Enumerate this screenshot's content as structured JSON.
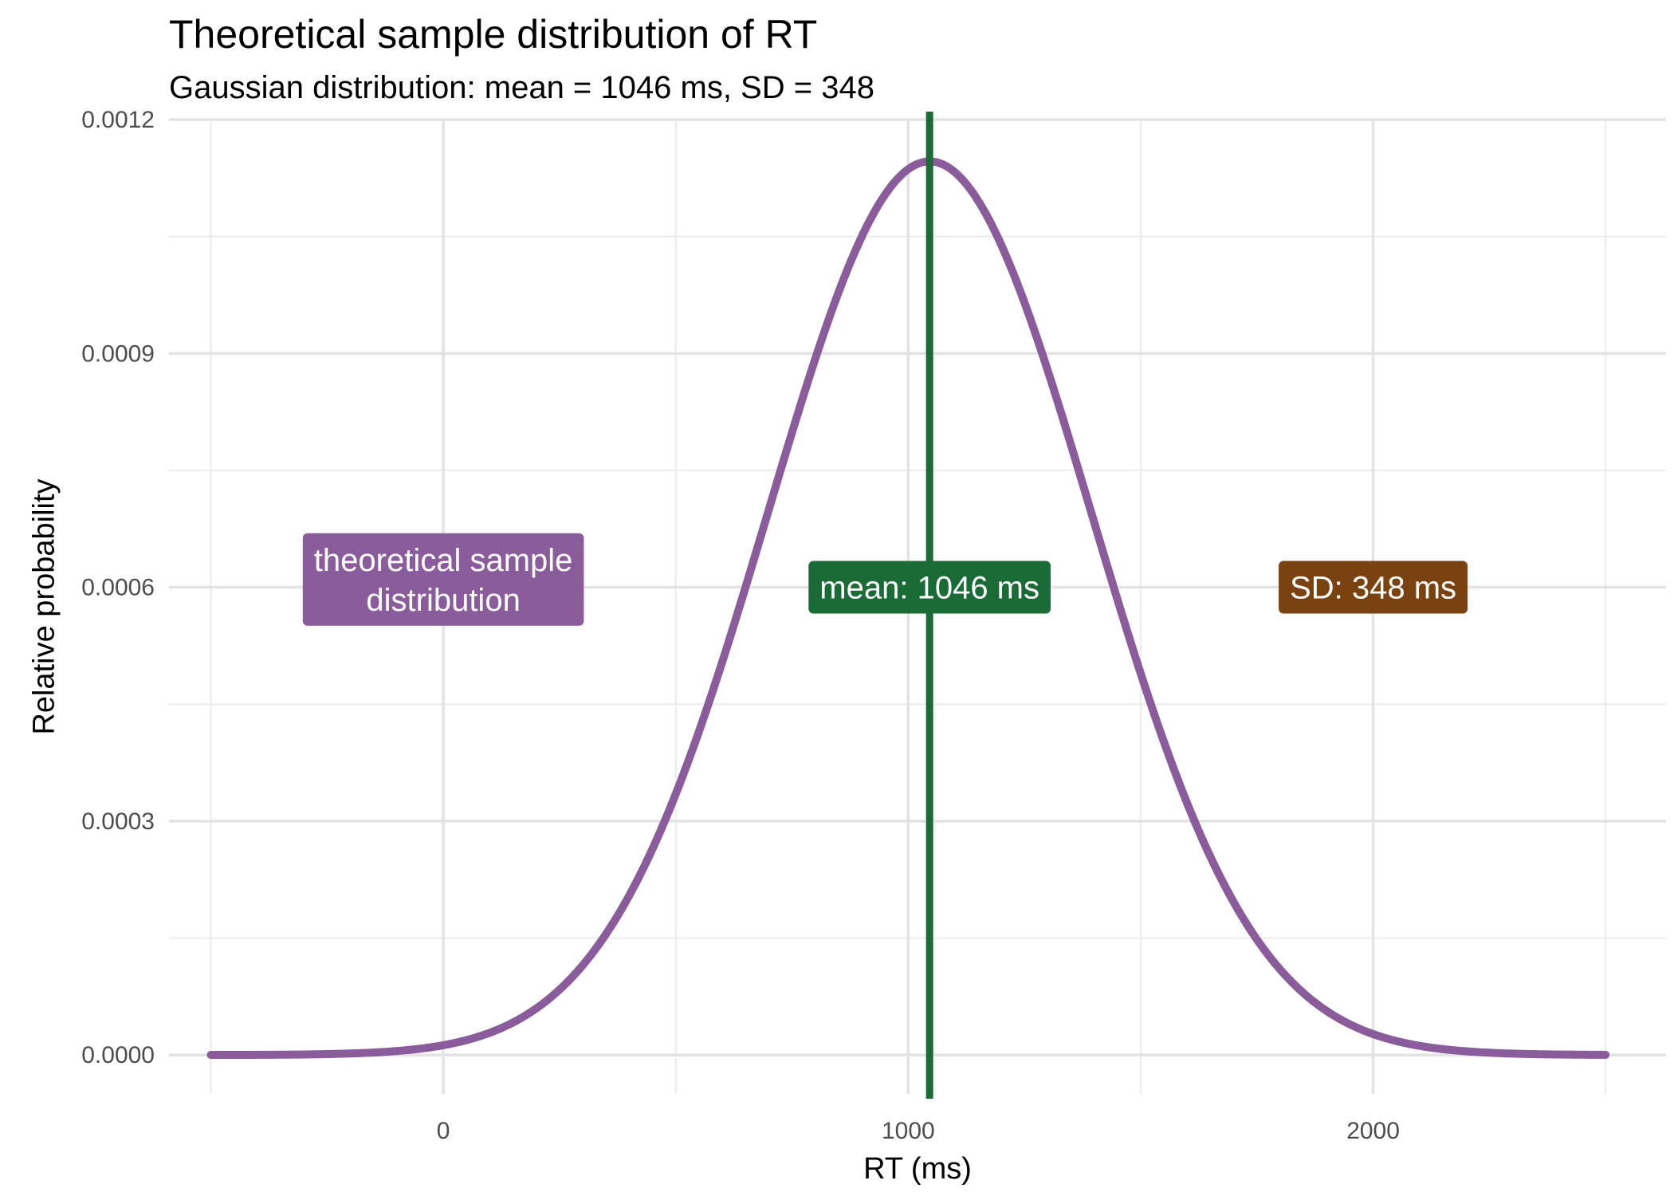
{
  "chart_data": {
    "type": "line",
    "title": "Theoretical sample distribution of RT",
    "subtitle": "Gaussian distribution: mean = 1046 ms, SD = 348",
    "xlabel": "RT (ms)",
    "ylabel": "Relative probability",
    "xlim": [
      -590,
      2630
    ],
    "ylim": [
      -5e-05,
      0.0012
    ],
    "x_ticks": [
      0,
      1000,
      2000
    ],
    "x_tick_labels": [
      "0",
      "1000",
      "2000"
    ],
    "x_minor_ticks": [
      -500,
      500,
      1500,
      2500
    ],
    "y_ticks": [
      0,
      0.0003,
      0.0006,
      0.0009,
      0.0012
    ],
    "y_tick_labels": [
      "0.0000",
      "0.0003",
      "0.0006",
      "0.0009",
      "0.0012"
    ],
    "y_minor_ticks": [
      0.00015,
      0.00045,
      0.00075,
      0.00105
    ],
    "grid": true,
    "distribution": {
      "kind": "gaussian",
      "mean": 1046,
      "sd": 348,
      "x_from": -500,
      "x_to": 2500
    },
    "mean_line": {
      "x": 1046,
      "color": "#1b6b36"
    },
    "curve_color": "#8a5c9c",
    "annotations": [
      {
        "name": "annotation-distribution",
        "lines": [
          "theoretical sample",
          "distribution"
        ],
        "x": 0,
        "y": 0.00061,
        "fill": "#8a5c9c"
      },
      {
        "name": "annotation-mean",
        "lines": [
          "mean: 1046 ms"
        ],
        "x": 1046,
        "y": 0.0006,
        "fill": "#1b6b36"
      },
      {
        "name": "annotation-sd",
        "lines": [
          "SD: 348 ms"
        ],
        "x": 2000,
        "y": 0.0006,
        "fill": "#7a420f"
      }
    ]
  }
}
